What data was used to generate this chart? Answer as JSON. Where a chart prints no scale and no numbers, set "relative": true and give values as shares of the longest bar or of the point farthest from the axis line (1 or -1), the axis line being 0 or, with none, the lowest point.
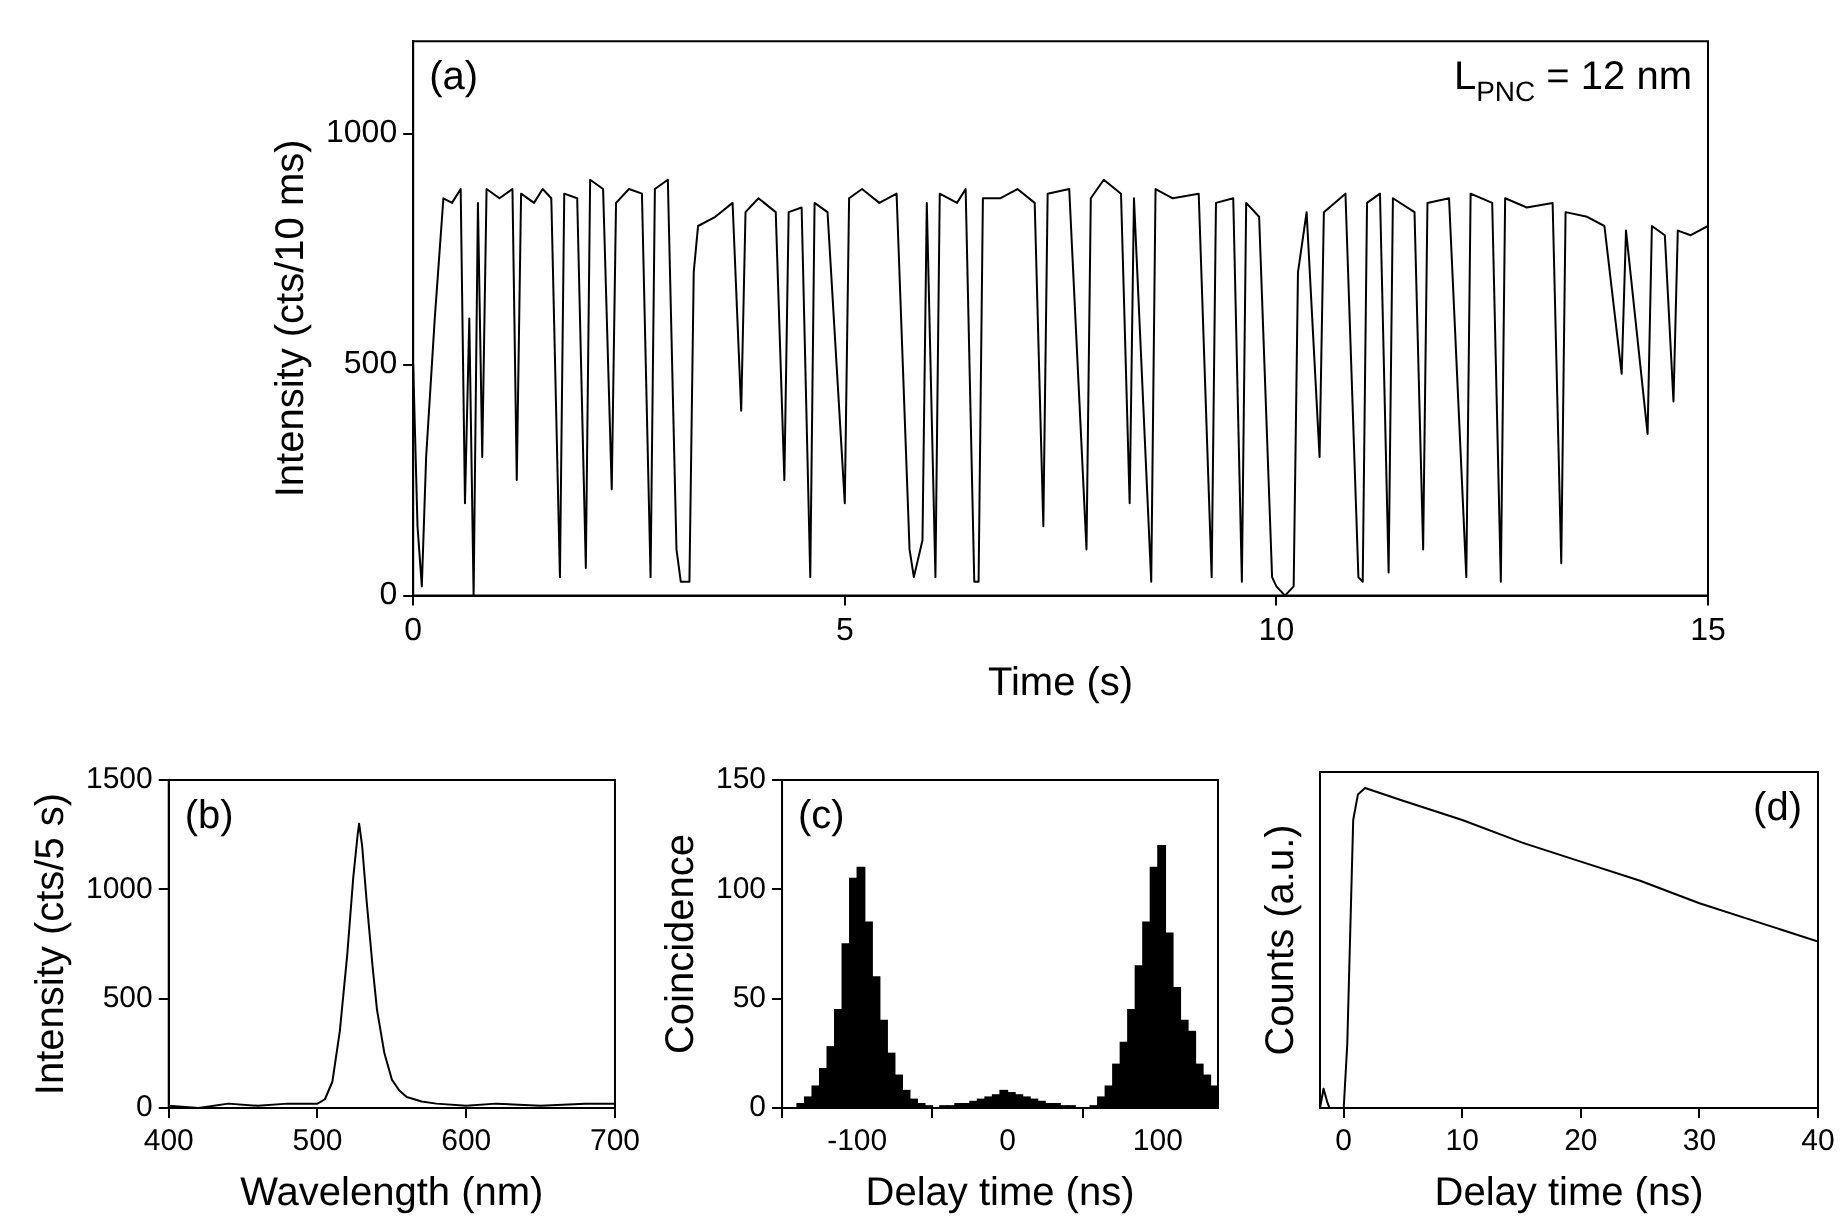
{
  "chart_data": [
    {
      "type": "line",
      "xlabel": "Time (s)",
      "ylabel": "Intensity (cts/10 ms)",
      "annotations": [
        "(a)",
        "L$_{PNC}$ = 12 nm"
      ],
      "xlim": [
        0,
        15
      ],
      "xticks": [
        0,
        5,
        10,
        15
      ],
      "ylim": [
        0,
        1200
      ],
      "yticks": [
        0,
        500,
        1000
      ],
      "x": [
        0,
        0.05,
        0.1,
        0.15,
        0.25,
        0.35,
        0.45,
        0.55,
        0.6,
        0.65,
        0.7,
        0.75,
        0.8,
        0.85,
        1.0,
        1.15,
        1.2,
        1.25,
        1.4,
        1.5,
        1.6,
        1.7,
        1.75,
        1.9,
        2.0,
        2.05,
        2.2,
        2.3,
        2.35,
        2.5,
        2.65,
        2.75,
        2.8,
        2.95,
        3.05,
        3.1,
        3.2,
        3.25,
        3.3,
        3.5,
        3.7,
        3.8,
        3.85,
        4.0,
        4.2,
        4.3,
        4.35,
        4.5,
        4.6,
        4.65,
        4.8,
        5.0,
        5.05,
        5.2,
        5.4,
        5.6,
        5.75,
        5.8,
        5.9,
        5.95,
        6.05,
        6.1,
        6.3,
        6.4,
        6.5,
        6.55,
        6.6,
        6.8,
        7.0,
        7.2,
        7.3,
        7.35,
        7.6,
        7.8,
        7.85,
        8.0,
        8.2,
        8.3,
        8.35,
        8.55,
        8.6,
        8.8,
        9.1,
        9.25,
        9.3,
        9.5,
        9.6,
        9.65,
        9.8,
        9.95,
        10.0,
        10.1,
        10.2,
        10.25,
        10.35,
        10.5,
        10.55,
        10.8,
        10.95,
        11.0,
        11.05,
        11.2,
        11.3,
        11.35,
        11.6,
        11.7,
        11.75,
        12.0,
        12.2,
        12.25,
        12.5,
        12.6,
        12.65,
        12.9,
        13.2,
        13.3,
        13.35,
        13.6,
        13.8,
        14.0,
        14.05,
        14.3,
        14.35,
        14.5,
        14.6,
        14.65,
        14.8,
        15.0
      ],
      "series": [
        {
          "color": "#000000",
          "values": [
            500,
            150,
            20,
            300,
            600,
            860,
            850,
            880,
            200,
            600,
            0,
            850,
            300,
            880,
            860,
            880,
            250,
            870,
            850,
            880,
            860,
            40,
            870,
            860,
            60,
            900,
            880,
            230,
            850,
            880,
            870,
            40,
            880,
            900,
            100,
            30,
            30,
            700,
            800,
            820,
            850,
            400,
            830,
            860,
            830,
            250,
            830,
            840,
            40,
            850,
            830,
            200,
            860,
            880,
            850,
            870,
            100,
            40,
            120,
            850,
            40,
            870,
            850,
            880,
            30,
            30,
            860,
            860,
            880,
            850,
            150,
            870,
            880,
            100,
            860,
            900,
            870,
            200,
            860,
            30,
            880,
            860,
            870,
            40,
            850,
            860,
            30,
            850,
            820,
            40,
            20,
            0,
            20,
            700,
            830,
            300,
            830,
            870,
            40,
            30,
            850,
            870,
            50,
            860,
            830,
            100,
            850,
            860,
            40,
            870,
            850,
            30,
            860,
            840,
            850,
            70,
            830,
            820,
            800,
            480,
            790,
            350,
            800,
            780,
            420,
            790,
            780,
            800
          ]
        }
      ]
    },
    {
      "type": "line",
      "xlabel": "Wavelength (nm)",
      "ylabel": "Intensity (cts/5 s)",
      "annotations": [
        "(b)"
      ],
      "xlim": [
        400,
        700
      ],
      "xticks": [
        400,
        500,
        600,
        700
      ],
      "ylim": [
        0,
        1500
      ],
      "yticks": [
        0,
        500,
        1000,
        1500
      ],
      "x": [
        400,
        420,
        440,
        460,
        480,
        500,
        505,
        510,
        515,
        520,
        524,
        527,
        528,
        530,
        533,
        537,
        540,
        545,
        550,
        555,
        560,
        570,
        580,
        600,
        620,
        650,
        680,
        700
      ],
      "series": [
        {
          "color": "#000000",
          "values": [
            10,
            0,
            20,
            10,
            20,
            20,
            40,
            120,
            350,
            700,
            1050,
            1250,
            1300,
            1200,
            950,
            650,
            450,
            250,
            130,
            80,
            50,
            30,
            20,
            10,
            20,
            10,
            20,
            20
          ]
        }
      ]
    },
    {
      "type": "histogram",
      "xlabel": "Delay time (ns)",
      "ylabel": "Coincidence",
      "annotations": [
        "(c)"
      ],
      "xlim": [
        -150,
        140
      ],
      "xticks": [
        -100,
        0,
        100
      ],
      "ylim": [
        0,
        150
      ],
      "yticks": [
        0,
        50,
        100,
        150
      ],
      "color": "#000000",
      "bins": [
        -150,
        -145,
        -140,
        -135,
        -130,
        -125,
        -120,
        -115,
        -110,
        -105,
        -100,
        -95,
        -90,
        -85,
        -80,
        -75,
        -70,
        -65,
        -60,
        -55,
        -50,
        -45,
        -40,
        -35,
        -30,
        -25,
        -20,
        -15,
        -10,
        -5,
        0,
        5,
        10,
        15,
        20,
        25,
        30,
        35,
        40,
        45,
        50,
        55,
        60,
        65,
        70,
        75,
        80,
        85,
        90,
        95,
        100,
        105,
        110,
        115,
        120,
        125,
        130,
        135,
        140
      ],
      "values": [
        0,
        0,
        2,
        5,
        10,
        18,
        28,
        45,
        75,
        105,
        110,
        85,
        60,
        40,
        25,
        15,
        8,
        4,
        2,
        1,
        0,
        1,
        1,
        2,
        2,
        3,
        4,
        5,
        6,
        8,
        7,
        6,
        5,
        4,
        3,
        2,
        2,
        1,
        1,
        0,
        0,
        1,
        5,
        10,
        20,
        30,
        45,
        65,
        85,
        110,
        120,
        80,
        55,
        40,
        35,
        20,
        15,
        10
      ]
    },
    {
      "type": "line",
      "relative": true,
      "tick_labels": "x",
      "xlabel": "Delay time (ns)",
      "ylabel": "Counts (a.u.)",
      "annotations": [
        "(d)"
      ],
      "xlim": [
        -2,
        40
      ],
      "xticks": [
        0,
        10,
        20,
        30,
        40
      ],
      "x": [
        -2,
        -1.7,
        -1.4,
        -1.2,
        0,
        0.3,
        0.8,
        1.2,
        1.8,
        5,
        10,
        15,
        20,
        25,
        30,
        35,
        40
      ],
      "series": [
        {
          "color": "#000000",
          "values": [
            0,
            0.06,
            0.02,
            0,
            0,
            0.2,
            0.9,
            0.98,
            1,
            0.96,
            0.9,
            0.83,
            0.77,
            0.71,
            0.64,
            0.58,
            0.52
          ]
        }
      ]
    }
  ]
}
